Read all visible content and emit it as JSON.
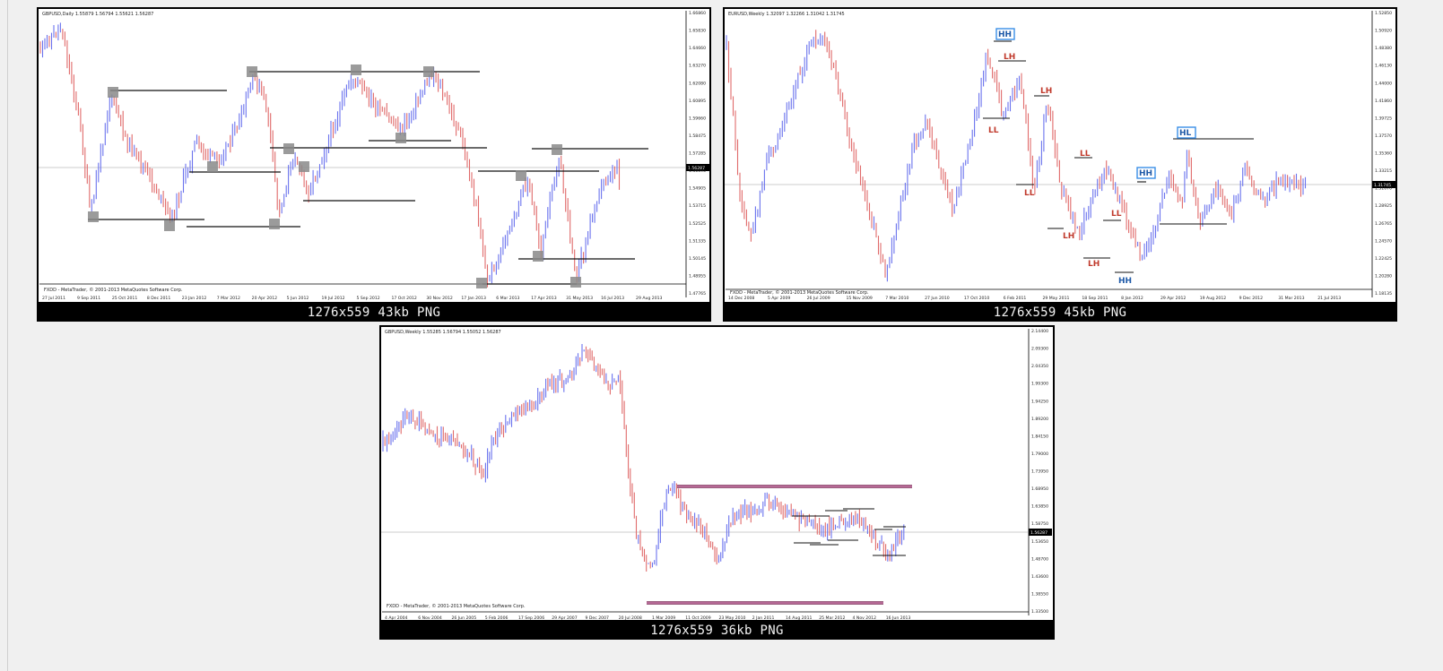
{
  "thumbnails": [
    {
      "id": "gbpusd-daily",
      "caption": "1276x559 43kb PNG",
      "header": "GBPUSD,Daily  1.55879 1.56794 1.55621 1.56287",
      "footer": "FXDD - MetaTrader, © 2001-2013 MetaQuotes Software Corp.",
      "price_label": "1.56287",
      "y_ticks": [
        "1.66860",
        "1.65830",
        "1.64660",
        "1.63270",
        "1.62080",
        "1.60895",
        "1.59660",
        "1.58475",
        "1.57285",
        "1.56095",
        "1.54905",
        "1.53715",
        "1.52525",
        "1.51335",
        "1.50145",
        "1.48955",
        "1.47765"
      ],
      "x_ticks": [
        "27 Jul 2011",
        "9 Sep 2011",
        "25 Oct 2011",
        "8 Dec 2011",
        "23 Jan 2012",
        "7 Mar 2012",
        "20 Apr 2012",
        "5 Jun 2012",
        "19 Jul 2012",
        "5 Sep 2012",
        "17 Oct 2012",
        "30 Nov 2012",
        "17 Jan 2013",
        "6 Mar 2013",
        "17 Apr 2013",
        "31 May 2013",
        "16 Jul 2013",
        "29 Aug 2013"
      ]
    },
    {
      "id": "eurusd-weekly",
      "caption": "1276x559 45kb PNG",
      "header": "EURUSD,Weekly  1.32097 1.32266 1.31042 1.31745",
      "footer": "FXDD - MetaTrader, © 2001-2013 MetaQuotes Software Corp.",
      "price_label": "1.31745",
      "y_ticks": [
        "1.52850",
        "1.50920",
        "1.48380",
        "1.46130",
        "1.44000",
        "1.41860",
        "1.39725",
        "1.37570",
        "1.35360",
        "1.33215",
        "1.31070",
        "1.28925",
        "1.26765",
        "1.24570",
        "1.22425",
        "1.20280",
        "1.18135"
      ],
      "x_ticks": [
        "14 Dec 2008",
        "5 Apr 2009",
        "26 Jul 2009",
        "15 Nov 2009",
        "7 Mar 2010",
        "27 Jun 2010",
        "17 Oct 2010",
        "6 Feb 2011",
        "29 May 2011",
        "18 Sep 2011",
        "8 Jan 2012",
        "29 Apr 2012",
        "19 Aug 2012",
        "9 Dec 2012",
        "31 Mar 2013",
        "21 Jul 2013"
      ],
      "markers": [
        "HH",
        "LH",
        "LL",
        "LH",
        "LL",
        "LH",
        "LL",
        "LH",
        "LL",
        "HH",
        "HH",
        "HL"
      ]
    },
    {
      "id": "gbpusd-weekly",
      "caption": "1276x559 36kb PNG",
      "header": "GBPUSD,Weekly  1.55285 1.56794 1.55052 1.56287",
      "footer": "FXDD - MetaTrader, © 2001-2013 MetaQuotes Software Corp.",
      "price_label": "1.56287",
      "y_ticks": [
        "2.14400",
        "2.09300",
        "2.04350",
        "1.99300",
        "1.94250",
        "1.89200",
        "1.84150",
        "1.79000",
        "1.73950",
        "1.68950",
        "1.63850",
        "1.58750",
        "1.53650",
        "1.48700",
        "1.43600",
        "1.38550",
        "1.33500"
      ],
      "x_ticks": [
        "4 Apr 2004",
        "6 Nov 2004",
        "26 Jun 2005",
        "5 Feb 2006",
        "17 Sep 2006",
        "29 Apr 2007",
        "9 Dec 2007",
        "20 Jul 2008",
        "1 Mar 2009",
        "11 Oct 2009",
        "23 May 2010",
        "2 Jan 2011",
        "14 Aug 2011",
        "25 Mar 2012",
        "4 Nov 2012",
        "16 Jun 2013"
      ]
    }
  ],
  "colors": {
    "bull": "#6b73ee",
    "bear": "#e06b6b",
    "level": "#111111",
    "zone": "#8a8a8a",
    "resistance": "#7a2a55",
    "label_bg": "#000000",
    "label_fg": "#f2f2f2",
    "marker_red": "#c0392b",
    "marker_blue": "#1f5aa8"
  }
}
